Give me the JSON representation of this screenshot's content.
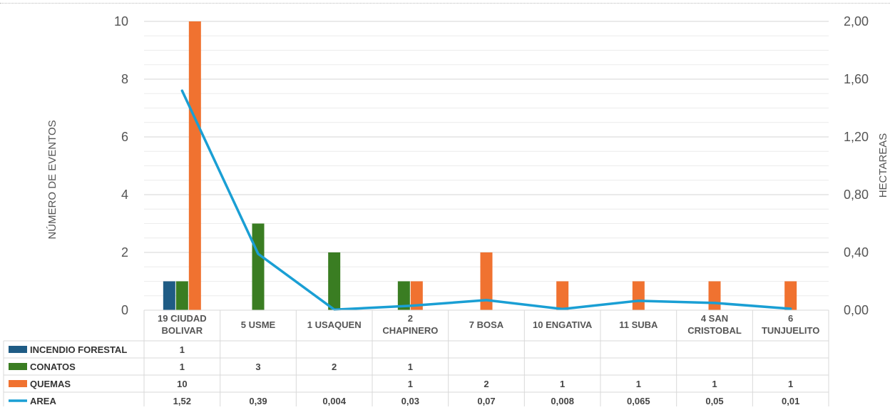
{
  "chart_data": {
    "type": "bar",
    "categories": [
      "19 CIUDAD\nBOLIVAR",
      "5 USME",
      "1 USAQUEN",
      "2\nCHAPINERO",
      "7 BOSA",
      "10 ENGATIVA",
      "11 SUBA",
      "4 SAN\nCRISTOBAL",
      "6\nTUNJUELITO"
    ],
    "series": [
      {
        "name": "INCENDIO FORESTAL",
        "type": "bar",
        "axis": "left",
        "color": "#1f5c85",
        "values": [
          1,
          null,
          null,
          null,
          null,
          null,
          null,
          null,
          null
        ]
      },
      {
        "name": "CONATOS",
        "type": "bar",
        "axis": "left",
        "color": "#3a7d22",
        "values": [
          1,
          3,
          2,
          1,
          null,
          null,
          null,
          null,
          null
        ]
      },
      {
        "name": "QUEMAS",
        "type": "bar",
        "axis": "left",
        "color": "#f07230",
        "values": [
          10,
          null,
          null,
          1,
          2,
          1,
          1,
          1,
          1
        ]
      },
      {
        "name": "AREA",
        "type": "line",
        "axis": "right",
        "color": "#1a9fd4",
        "values": [
          1.52,
          0.39,
          0.004,
          0.03,
          0.07,
          0.008,
          0.065,
          0.05,
          0.01
        ]
      }
    ],
    "table_text": [
      [
        "1",
        "",
        "",
        "",
        "",
        "",
        "",
        "",
        ""
      ],
      [
        "1",
        "3",
        "2",
        "1",
        "",
        "",
        "",
        "",
        ""
      ],
      [
        "10",
        "",
        "",
        "1",
        "2",
        "1",
        "1",
        "1",
        "1"
      ],
      [
        "1,52",
        "0,39",
        "0,004",
        "0,03",
        "0,07",
        "0,008",
        "0,065",
        "0,05",
        "0,01"
      ]
    ],
    "ylabel": "NÚMERO DE EVENTOS",
    "y2label": "HECTAREAS",
    "ylim": [
      0,
      10
    ],
    "y2lim": [
      0,
      2
    ],
    "yticks": [
      "0",
      "2",
      "4",
      "6",
      "8",
      "10"
    ],
    "y2ticks": [
      "0,00",
      "0,40",
      "0,80",
      "1,20",
      "1,60",
      "2,00"
    ],
    "grid": true,
    "legend": "data-table-left"
  }
}
